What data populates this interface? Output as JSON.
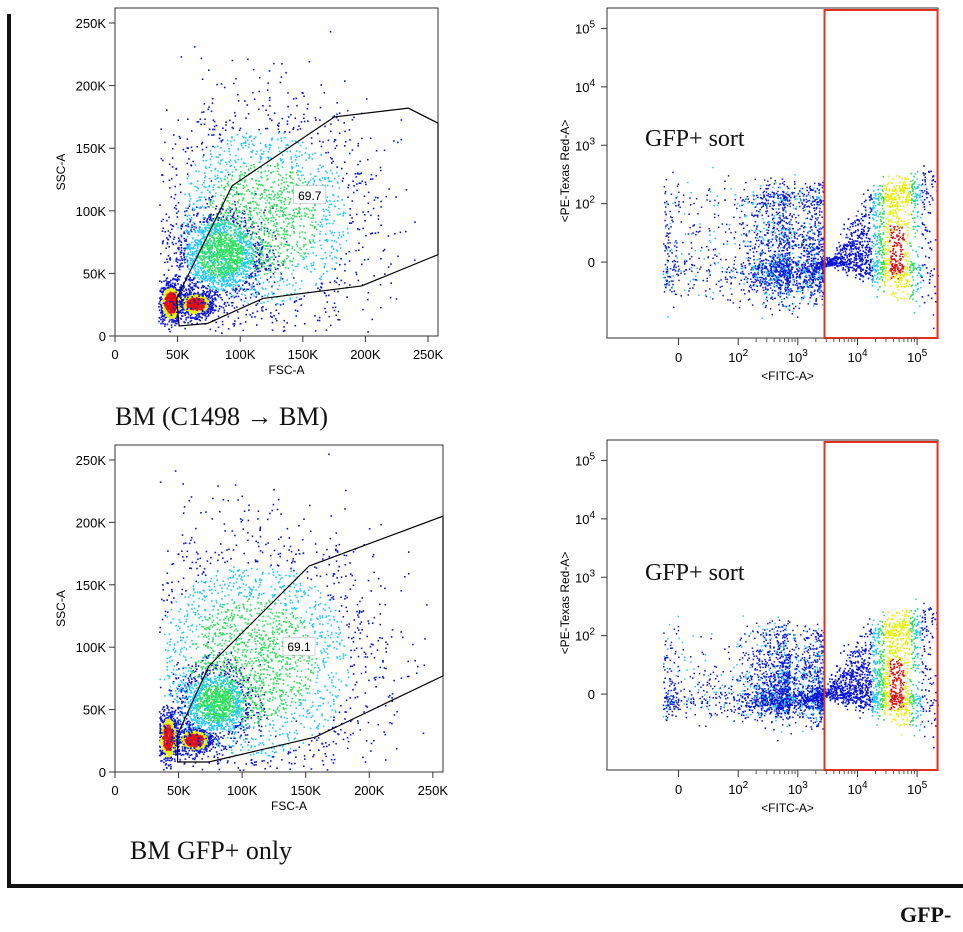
{
  "colors": {
    "density_low": "#0a14d8",
    "density_mid": "#22c8ff",
    "density_high": "#e8f000",
    "density_peak": "#e01010",
    "sort_gate": "#e03020",
    "gate_line": "#000000"
  },
  "captions": {
    "top_left": "BM (C1498 → BM)",
    "bottom_left": "BM GFP+ only",
    "bottom_right": "GFP-"
  },
  "chart_data": [
    {
      "type": "scatter",
      "plot": "density dot plot",
      "xlabel": "FSC-A",
      "ylabel": "SSC-A",
      "xlim": [
        0,
        262000
      ],
      "ylim": [
        0,
        262000
      ],
      "xticks": [
        "0",
        "50K",
        "100K",
        "150K",
        "200K",
        "250K"
      ],
      "yticks": [
        "0",
        "50K",
        "100K",
        "150K",
        "200K",
        "250K"
      ],
      "gate_label": "69.7",
      "gate_polygon": [
        [
          52000,
          8000
        ],
        [
          50000,
          30000
        ],
        [
          65000,
          60000
        ],
        [
          95000,
          120000
        ],
        [
          178000,
          175000
        ],
        [
          238000,
          182000
        ],
        [
          262000,
          170000
        ],
        [
          262000,
          65000
        ],
        [
          200000,
          40000
        ],
        [
          120000,
          30000
        ],
        [
          75000,
          10000
        ]
      ],
      "populations": [
        {
          "x": 45000,
          "y": 27000,
          "sx": 5000,
          "sy": 8000,
          "w": 0.15
        },
        {
          "x": 65000,
          "y": 26000,
          "sx": 7000,
          "sy": 5000,
          "w": 0.12
        },
        {
          "x": 85000,
          "y": 65000,
          "sx": 18000,
          "sy": 18000,
          "w": 0.33
        },
        {
          "x": 120000,
          "y": 95000,
          "sx": 45000,
          "sy": 45000,
          "w": 0.4
        }
      ]
    },
    {
      "type": "scatter",
      "plot": "density dot plot",
      "scale": "biexponential",
      "xlabel": "<FITC-A>",
      "ylabel": "<PE-Texas Red-A>",
      "xticks": [
        "0",
        "10^2",
        "10^3",
        "10^4",
        "10^5"
      ],
      "yticks": [
        "0",
        "10^2",
        "10^3",
        "10^4",
        "10^5"
      ],
      "annotation": "GFP+ sort",
      "sort_gate": {
        "x_from": 2800,
        "x_to": 220000
      },
      "populations": [
        {
          "x": 45000,
          "y": 20,
          "w": 0.6
        },
        {
          "x": 30,
          "y": 0,
          "w": 0.4
        }
      ]
    },
    {
      "type": "scatter",
      "plot": "density dot plot",
      "xlabel": "FSC-A",
      "ylabel": "SSC-A",
      "xlim": [
        0,
        262000
      ],
      "ylim": [
        0,
        262000
      ],
      "xticks": [
        "0",
        "50K",
        "100K",
        "150K",
        "200K",
        "250K"
      ],
      "yticks": [
        "0",
        "50K",
        "100K",
        "150K",
        "200K",
        "250K"
      ],
      "gate_label": "69.1",
      "gate_polygon": [
        [
          50000,
          8000
        ],
        [
          50000,
          30000
        ],
        [
          75000,
          85000
        ],
        [
          155000,
          165000
        ],
        [
          262000,
          205000
        ],
        [
          262000,
          77000
        ],
        [
          160000,
          28000
        ],
        [
          75000,
          8000
        ]
      ],
      "populations": [
        {
          "x": 42000,
          "y": 28000,
          "sx": 4000,
          "sy": 10000,
          "w": 0.12
        },
        {
          "x": 63000,
          "y": 26000,
          "sx": 7000,
          "sy": 5000,
          "w": 0.12
        },
        {
          "x": 80000,
          "y": 55000,
          "sx": 15000,
          "sy": 15000,
          "w": 0.26
        },
        {
          "x": 110000,
          "y": 90000,
          "sx": 50000,
          "sy": 50000,
          "w": 0.5
        }
      ]
    },
    {
      "type": "scatter",
      "plot": "density dot plot",
      "scale": "biexponential",
      "xlabel": "<FITC-A>",
      "ylabel": "<PE-Texas Red-A>",
      "xticks": [
        "0",
        "10^2",
        "10^3",
        "10^4",
        "10^5"
      ],
      "yticks": [
        "0",
        "10^2",
        "10^3",
        "10^4",
        "10^5"
      ],
      "annotation": "GFP+ sort",
      "sort_gate": {
        "x_from": 2800,
        "x_to": 220000
      },
      "populations": [
        {
          "x": 40000,
          "y": 10,
          "w": 0.6
        },
        {
          "x": 40,
          "y": 0,
          "w": 0.4
        }
      ]
    }
  ]
}
